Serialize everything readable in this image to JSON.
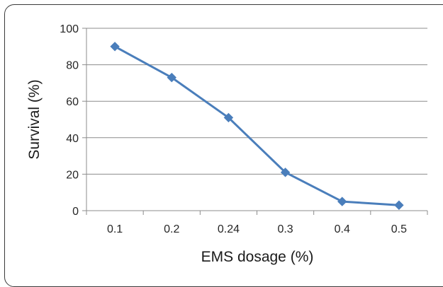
{
  "chart_data": {
    "type": "line",
    "categories": [
      "0.1",
      "0.2",
      "0.24",
      "0.3",
      "0.4",
      "0.5"
    ],
    "series": [
      {
        "values": [
          90,
          73,
          51,
          21,
          5,
          3
        ],
        "color": "#4a7ebb",
        "marker": "diamond"
      }
    ],
    "xlabel": "EMS dosage  (%)",
    "ylabel": "Survival  (%)",
    "ylim": [
      0,
      100
    ],
    "yticks": [
      0,
      20,
      40,
      60,
      80,
      100
    ],
    "grid": true,
    "legend": "none"
  }
}
